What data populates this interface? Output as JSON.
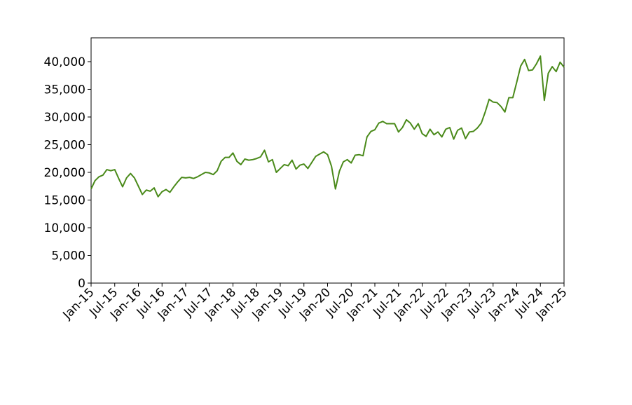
{
  "chart_data": {
    "type": "line",
    "x": [
      "2015-01",
      "2015-02",
      "2015-03",
      "2015-04",
      "2015-05",
      "2015-06",
      "2015-07",
      "2015-08",
      "2015-09",
      "2015-10",
      "2015-11",
      "2015-12",
      "2016-01",
      "2016-02",
      "2016-03",
      "2016-04",
      "2016-05",
      "2016-06",
      "2016-07",
      "2016-08",
      "2016-09",
      "2016-10",
      "2016-11",
      "2016-12",
      "2017-01",
      "2017-02",
      "2017-03",
      "2017-04",
      "2017-05",
      "2017-06",
      "2017-07",
      "2017-08",
      "2017-09",
      "2017-10",
      "2017-11",
      "2017-12",
      "2018-01",
      "2018-02",
      "2018-03",
      "2018-04",
      "2018-05",
      "2018-06",
      "2018-07",
      "2018-08",
      "2018-09",
      "2018-10",
      "2018-11",
      "2018-12",
      "2019-01",
      "2019-02",
      "2019-03",
      "2019-04",
      "2019-05",
      "2019-06",
      "2019-07",
      "2019-08",
      "2019-09",
      "2019-10",
      "2019-11",
      "2019-12",
      "2020-01",
      "2020-02",
      "2020-03",
      "2020-04",
      "2020-05",
      "2020-06",
      "2020-07",
      "2020-08",
      "2020-09",
      "2020-10",
      "2020-11",
      "2020-12",
      "2021-01",
      "2021-02",
      "2021-03",
      "2021-04",
      "2021-05",
      "2021-06",
      "2021-07",
      "2021-08",
      "2021-09",
      "2021-10",
      "2021-11",
      "2021-12",
      "2022-01",
      "2022-02",
      "2022-03",
      "2022-04",
      "2022-05",
      "2022-06",
      "2022-07",
      "2022-08",
      "2022-09",
      "2022-10",
      "2022-11",
      "2022-12",
      "2023-01",
      "2023-02",
      "2023-03",
      "2023-04",
      "2023-05",
      "2023-06",
      "2023-07",
      "2023-08",
      "2023-09",
      "2023-10",
      "2023-11",
      "2023-12",
      "2024-01",
      "2024-02",
      "2024-03",
      "2024-04",
      "2024-05",
      "2024-06",
      "2024-07",
      "2024-08",
      "2024-09",
      "2024-10",
      "2024-11",
      "2024-12",
      "2025-01"
    ],
    "series": [
      {
        "color": "#4a8a1a",
        "values": [
          17000,
          18500,
          19200,
          19500,
          20500,
          20300,
          20500,
          18900,
          17400,
          19000,
          19800,
          19000,
          17500,
          16000,
          16800,
          16600,
          17200,
          15600,
          16500,
          16900,
          16400,
          17400,
          18300,
          19100,
          19000,
          19100,
          18900,
          19200,
          19600,
          20000,
          19900,
          19600,
          20300,
          22000,
          22700,
          22700,
          23500,
          22000,
          21400,
          22400,
          22200,
          22300,
          22500,
          22800,
          24000,
          21900,
          22300,
          20000,
          20700,
          21400,
          21200,
          22200,
          20600,
          21300,
          21500,
          20700,
          21800,
          22900,
          23300,
          23700,
          23200,
          21100,
          17000,
          20200,
          21900,
          22300,
          21700,
          23100,
          23200,
          23000,
          26400,
          27400,
          27700,
          28900,
          29200,
          28800,
          28800,
          28800,
          27300,
          28100,
          29500,
          28900,
          27800,
          28800,
          27000,
          26500,
          27800,
          26800,
          27300,
          26400,
          27800,
          28100,
          26000,
          27600,
          28000,
          26100,
          27300,
          27400,
          28000,
          28900,
          30900,
          33200,
          32700,
          32600,
          31900,
          30900,
          33500,
          33500,
          36300,
          39200,
          40400,
          38400,
          38500,
          39600,
          41000,
          33000,
          37900,
          39100,
          38200,
          39900,
          39000
        ]
      }
    ],
    "xlim": [
      "2015-01",
      "2025-01"
    ],
    "xticks": [
      {
        "value": "2015-01",
        "label": "Jan-15"
      },
      {
        "value": "2015-07",
        "label": "Jul-15"
      },
      {
        "value": "2016-01",
        "label": "Jan-16"
      },
      {
        "value": "2016-07",
        "label": "Jul-16"
      },
      {
        "value": "2017-01",
        "label": "Jan-17"
      },
      {
        "value": "2017-07",
        "label": "Jul-17"
      },
      {
        "value": "2018-01",
        "label": "Jan-18"
      },
      {
        "value": "2018-07",
        "label": "Jul-18"
      },
      {
        "value": "2019-01",
        "label": "Jan-19"
      },
      {
        "value": "2019-07",
        "label": "Jul-19"
      },
      {
        "value": "2020-01",
        "label": "Jan-20"
      },
      {
        "value": "2020-07",
        "label": "Jul-20"
      },
      {
        "value": "2021-01",
        "label": "Jan-21"
      },
      {
        "value": "2021-07",
        "label": "Jul-21"
      },
      {
        "value": "2022-01",
        "label": "Jan-22"
      },
      {
        "value": "2022-07",
        "label": "Jul-22"
      },
      {
        "value": "2023-01",
        "label": "Jan-23"
      },
      {
        "value": "2023-07",
        "label": "Jul-23"
      },
      {
        "value": "2024-01",
        "label": "Jan-24"
      },
      {
        "value": "2024-07",
        "label": "Jul-24"
      },
      {
        "value": "2025-01",
        "label": "Jan-25"
      }
    ],
    "ylim": [
      0,
      44300
    ],
    "yticks": [
      0,
      {
        "value": 5000,
        "label": "5,000"
      },
      {
        "value": 10000,
        "label": "10,000"
      },
      {
        "value": 15000,
        "label": "15,000"
      },
      {
        "value": 20000,
        "label": "20,000"
      },
      {
        "value": 25000,
        "label": "25,000"
      },
      {
        "value": 30000,
        "label": "30,000"
      },
      {
        "value": 35000,
        "label": "35,000"
      },
      {
        "value": 40000,
        "label": "40,000"
      }
    ],
    "grid": false
  }
}
